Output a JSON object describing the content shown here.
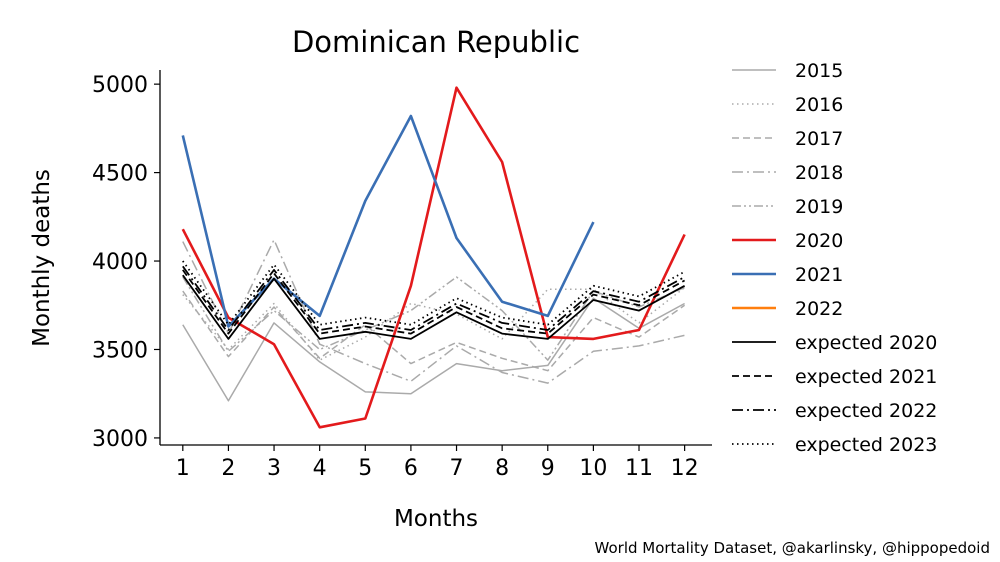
{
  "chart_data": {
    "type": "line",
    "title": "Dominican Republic",
    "xlabel": "Months",
    "ylabel": "Monthly deaths",
    "x": [
      1,
      2,
      3,
      4,
      5,
      6,
      7,
      8,
      9,
      10,
      11,
      12
    ],
    "xticks": [
      "1",
      "2",
      "3",
      "4",
      "5",
      "6",
      "7",
      "8",
      "9",
      "10",
      "11",
      "12"
    ],
    "yticks": [
      3000,
      3500,
      4000,
      4500,
      5000
    ],
    "ytick_labels": [
      "3000",
      "3500",
      "4000",
      "4500",
      "5000"
    ],
    "xlim": [
      0.5,
      12.6
    ],
    "ylim": [
      2960,
      5080
    ],
    "grid": false,
    "legend_position": "outside-right",
    "series": [
      {
        "name": "2015",
        "color": "#aaaaaa",
        "dash": "solid",
        "width": 1.5,
        "values": [
          3640,
          3210,
          3650,
          3430,
          3260,
          3250,
          3420,
          3380,
          3410,
          3790,
          3620,
          3760
        ]
      },
      {
        "name": "2016",
        "color": "#aaaaaa",
        "dash": "dotted",
        "width": 1.5,
        "values": [
          3810,
          3500,
          3760,
          3440,
          3570,
          3760,
          3700,
          3560,
          3840,
          3840,
          3650,
          3850
        ]
      },
      {
        "name": "2017",
        "color": "#aaaaaa",
        "dash": "dashed",
        "width": 1.5,
        "values": [
          3830,
          3460,
          3740,
          3450,
          3640,
          3420,
          3540,
          3450,
          3380,
          3680,
          3570,
          3750
        ]
      },
      {
        "name": "2018",
        "color": "#aaaaaa",
        "dash": "dashdot",
        "width": 1.5,
        "values": [
          4110,
          3590,
          4120,
          3530,
          3420,
          3320,
          3520,
          3370,
          3310,
          3490,
          3520,
          3580
        ]
      },
      {
        "name": "2019",
        "color": "#aaaaaa",
        "dash": "dashdotdot",
        "width": 1.5,
        "values": [
          3910,
          3490,
          3720,
          3500,
          3610,
          3720,
          3910,
          3720,
          3440,
          3830,
          3740,
          3850
        ]
      },
      {
        "name": "2020",
        "color": "#e31a1c",
        "dash": "solid",
        "width": 2.6,
        "values": [
          4180,
          3680,
          3530,
          3060,
          3110,
          3860,
          4980,
          4560,
          3570,
          3560,
          3610,
          4150
        ]
      },
      {
        "name": "2021",
        "color": "#3a6fb4",
        "dash": "solid",
        "width": 2.6,
        "values": [
          4710,
          3630,
          3900,
          3690,
          4340,
          4820,
          4130,
          3770,
          3690,
          4220,
          null,
          null
        ]
      },
      {
        "name": "2022",
        "color": "#ff7f0e",
        "dash": "solid",
        "width": 2.6,
        "values": [
          null,
          null,
          null,
          null,
          null,
          null,
          null,
          null,
          null,
          null,
          null,
          null
        ]
      },
      {
        "name": "expected 2020",
        "color": "#000000",
        "dash": "solid",
        "width": 1.8,
        "values": [
          3920,
          3560,
          3900,
          3560,
          3600,
          3560,
          3710,
          3590,
          3560,
          3780,
          3720,
          3860
        ]
      },
      {
        "name": "expected 2021",
        "color": "#000000",
        "dash": "dashed",
        "width": 1.8,
        "values": [
          3950,
          3590,
          3930,
          3590,
          3630,
          3590,
          3740,
          3620,
          3590,
          3810,
          3750,
          3890
        ]
      },
      {
        "name": "expected 2022",
        "color": "#000000",
        "dash": "dashdot",
        "width": 1.8,
        "values": [
          3970,
          3610,
          3950,
          3610,
          3650,
          3610,
          3760,
          3650,
          3610,
          3830,
          3770,
          3910
        ]
      },
      {
        "name": "expected 2023",
        "color": "#000000",
        "dash": "dotted",
        "width": 1.8,
        "values": [
          4000,
          3640,
          3980,
          3640,
          3680,
          3640,
          3790,
          3680,
          3640,
          3860,
          3800,
          3940
        ]
      }
    ]
  },
  "footer": {
    "credit": "World Mortality Dataset, @akarlinsky, @hippopedoid"
  }
}
